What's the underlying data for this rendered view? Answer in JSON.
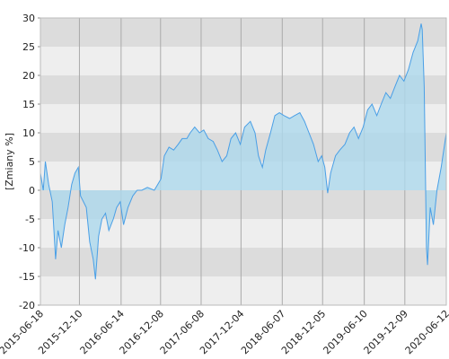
{
  "chart_data": {
    "type": "area",
    "y_label": "[Zmiany %]",
    "x": [
      "2015-06-18",
      "2015-07-01",
      "2015-07-10",
      "2015-07-25",
      "2015-08-10",
      "2015-08-25",
      "2015-09-05",
      "2015-09-20",
      "2015-10-05",
      "2015-10-20",
      "2015-11-05",
      "2015-11-20",
      "2015-12-05",
      "2015-12-15",
      "2016-01-10",
      "2016-01-25",
      "2016-02-10",
      "2016-02-20",
      "2016-03-05",
      "2016-03-20",
      "2016-04-05",
      "2016-04-20",
      "2016-05-10",
      "2016-05-25",
      "2016-06-10",
      "2016-06-25",
      "2016-07-15",
      "2016-08-05",
      "2016-08-25",
      "2016-09-15",
      "2016-10-10",
      "2016-11-10",
      "2016-11-25",
      "2016-12-10",
      "2016-12-25",
      "2017-01-15",
      "2017-02-05",
      "2017-02-25",
      "2017-03-15",
      "2017-04-05",
      "2017-04-20",
      "2017-05-10",
      "2017-06-01",
      "2017-06-20",
      "2017-07-10",
      "2017-08-01",
      "2017-08-20",
      "2017-09-10",
      "2017-10-01",
      "2017-10-20",
      "2017-11-10",
      "2017-12-01",
      "2017-12-20",
      "2018-01-15",
      "2018-02-05",
      "2018-02-20",
      "2018-03-10",
      "2018-03-25",
      "2018-04-15",
      "2018-05-05",
      "2018-05-25",
      "2018-06-15",
      "2018-07-10",
      "2018-08-01",
      "2018-08-25",
      "2018-09-15",
      "2018-10-05",
      "2018-10-25",
      "2018-11-15",
      "2018-12-01",
      "2018-12-15",
      "2018-12-28",
      "2019-01-10",
      "2019-02-01",
      "2019-02-20",
      "2019-03-15",
      "2019-04-05",
      "2019-04-25",
      "2019-05-15",
      "2019-06-05",
      "2019-06-25",
      "2019-07-15",
      "2019-08-05",
      "2019-08-25",
      "2019-09-15",
      "2019-10-05",
      "2019-10-25",
      "2019-11-15",
      "2019-12-05",
      "2019-12-25",
      "2020-01-15",
      "2020-02-05",
      "2020-02-20",
      "2020-02-25",
      "2020-03-05",
      "2020-03-15",
      "2020-03-20",
      "2020-04-01",
      "2020-04-15",
      "2020-05-01",
      "2020-05-20",
      "2020-06-12"
    ],
    "series": [
      {
        "color": "#4a9fe6",
        "fill": "#add8ec",
        "values": [
          3,
          0,
          5,
          1,
          -2,
          -12,
          -7,
          -10,
          -6,
          -3,
          1,
          3,
          4,
          -1,
          -3,
          -9,
          -12,
          -15.5,
          -8,
          -5,
          -4,
          -7,
          -5,
          -3,
          -2,
          -6,
          -3,
          -1,
          0,
          0,
          0.5,
          0,
          1,
          2,
          6,
          7.5,
          7,
          8,
          9,
          9,
          10,
          11,
          10,
          10.5,
          9,
          8.5,
          7,
          5,
          6,
          9,
          10,
          8,
          11,
          12,
          10,
          6,
          4,
          7,
          10,
          13,
          13.5,
          13,
          12.5,
          13,
          13.5,
          12,
          10,
          8,
          5,
          6,
          4,
          -0.5,
          3,
          6,
          7,
          8,
          10,
          11,
          9,
          11,
          14,
          15,
          13,
          15,
          17,
          16,
          18,
          20,
          19,
          21,
          24,
          26,
          29,
          28,
          18,
          -10,
          -13,
          -3,
          -6,
          0,
          4,
          10
        ]
      }
    ],
    "xlim": [
      "2015-06-18",
      "2020-06-12"
    ],
    "xticks": [
      "2015-06-18",
      "2015-12-10",
      "2016-06-14",
      "2016-12-08",
      "2017-06-08",
      "2017-12-04",
      "2018-06-07",
      "2018-12-05",
      "2019-06-10",
      "2019-12-09",
      "2020-06-12"
    ],
    "ylim": [
      -20,
      30
    ],
    "yticks": [
      -20,
      -15,
      -10,
      -5,
      0,
      5,
      10,
      15,
      20,
      25,
      30
    ],
    "band_colors": [
      "#dcdcdc",
      "#eeeeee"
    ],
    "grid": true
  }
}
